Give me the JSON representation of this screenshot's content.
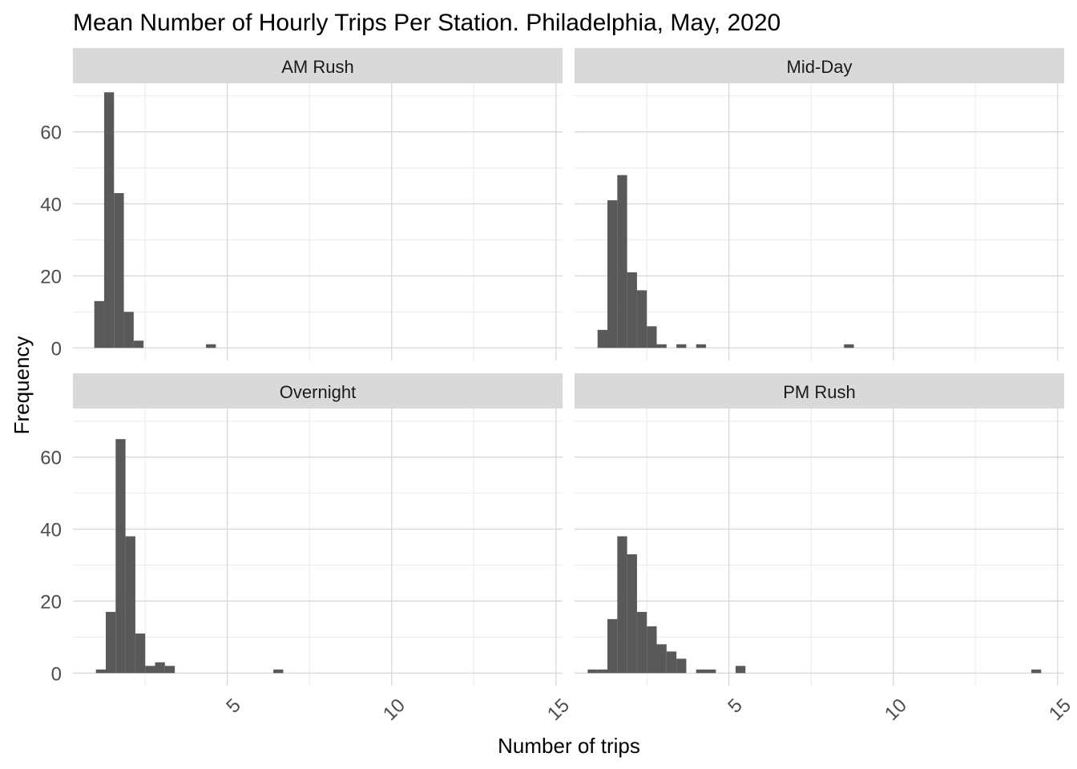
{
  "chart_data": {
    "type": "bar",
    "title": "Mean Number of Hourly Trips Per Station. Philadelphia, May, 2020",
    "xlabel": "Number of trips",
    "ylabel": "Frequency",
    "xlim": [
      0.3,
      15.2
    ],
    "ylim": [
      -3.5,
      73.5
    ],
    "x_ticks": [
      5,
      10,
      15
    ],
    "x_tick_labels": [
      "5",
      "10",
      "15"
    ],
    "y_ticks": [
      0,
      20,
      40,
      60
    ],
    "y_tick_labels": [
      "0",
      "20",
      "40",
      "60"
    ],
    "grid": true,
    "bar_color": "#595959",
    "strip_color": "#d9d9d9",
    "facets": [
      {
        "label": "AM Rush",
        "bins": [
          {
            "x0": 0.95,
            "x1": 1.25,
            "count": 13
          },
          {
            "x0": 1.25,
            "x1": 1.55,
            "count": 71
          },
          {
            "x0": 1.55,
            "x1": 1.85,
            "count": 43
          },
          {
            "x0": 1.85,
            "x1": 2.15,
            "count": 10
          },
          {
            "x0": 2.15,
            "x1": 2.45,
            "count": 2
          },
          {
            "x0": 4.35,
            "x1": 4.65,
            "count": 1
          }
        ]
      },
      {
        "label": "Mid-Day",
        "bins": [
          {
            "x0": 1.0,
            "x1": 1.3,
            "count": 5
          },
          {
            "x0": 1.3,
            "x1": 1.6,
            "count": 41
          },
          {
            "x0": 1.6,
            "x1": 1.9,
            "count": 48
          },
          {
            "x0": 1.9,
            "x1": 2.2,
            "count": 21
          },
          {
            "x0": 2.2,
            "x1": 2.5,
            "count": 16
          },
          {
            "x0": 2.5,
            "x1": 2.8,
            "count": 6
          },
          {
            "x0": 2.8,
            "x1": 3.1,
            "count": 1
          },
          {
            "x0": 3.4,
            "x1": 3.7,
            "count": 1
          },
          {
            "x0": 4.0,
            "x1": 4.3,
            "count": 1
          },
          {
            "x0": 8.5,
            "x1": 8.8,
            "count": 1
          }
        ]
      },
      {
        "label": "Overnight",
        "bins": [
          {
            "x0": 1.0,
            "x1": 1.3,
            "count": 1
          },
          {
            "x0": 1.3,
            "x1": 1.6,
            "count": 17
          },
          {
            "x0": 1.6,
            "x1": 1.9,
            "count": 65
          },
          {
            "x0": 1.9,
            "x1": 2.2,
            "count": 38
          },
          {
            "x0": 2.2,
            "x1": 2.5,
            "count": 11
          },
          {
            "x0": 2.5,
            "x1": 2.8,
            "count": 2
          },
          {
            "x0": 2.8,
            "x1": 3.1,
            "count": 3
          },
          {
            "x0": 3.1,
            "x1": 3.4,
            "count": 2
          },
          {
            "x0": 6.4,
            "x1": 6.7,
            "count": 1
          }
        ]
      },
      {
        "label": "PM Rush",
        "bins": [
          {
            "x0": 0.7,
            "x1": 1.0,
            "count": 1
          },
          {
            "x0": 1.0,
            "x1": 1.3,
            "count": 1
          },
          {
            "x0": 1.3,
            "x1": 1.6,
            "count": 15
          },
          {
            "x0": 1.6,
            "x1": 1.9,
            "count": 38
          },
          {
            "x0": 1.9,
            "x1": 2.2,
            "count": 33
          },
          {
            "x0": 2.2,
            "x1": 2.5,
            "count": 17
          },
          {
            "x0": 2.5,
            "x1": 2.8,
            "count": 13
          },
          {
            "x0": 2.8,
            "x1": 3.1,
            "count": 8
          },
          {
            "x0": 3.1,
            "x1": 3.4,
            "count": 6
          },
          {
            "x0": 3.4,
            "x1": 3.7,
            "count": 4
          },
          {
            "x0": 4.0,
            "x1": 4.3,
            "count": 1
          },
          {
            "x0": 4.3,
            "x1": 4.6,
            "count": 1
          },
          {
            "x0": 5.2,
            "x1": 5.5,
            "count": 2
          },
          {
            "x0": 14.2,
            "x1": 14.5,
            "count": 1
          }
        ]
      }
    ]
  }
}
